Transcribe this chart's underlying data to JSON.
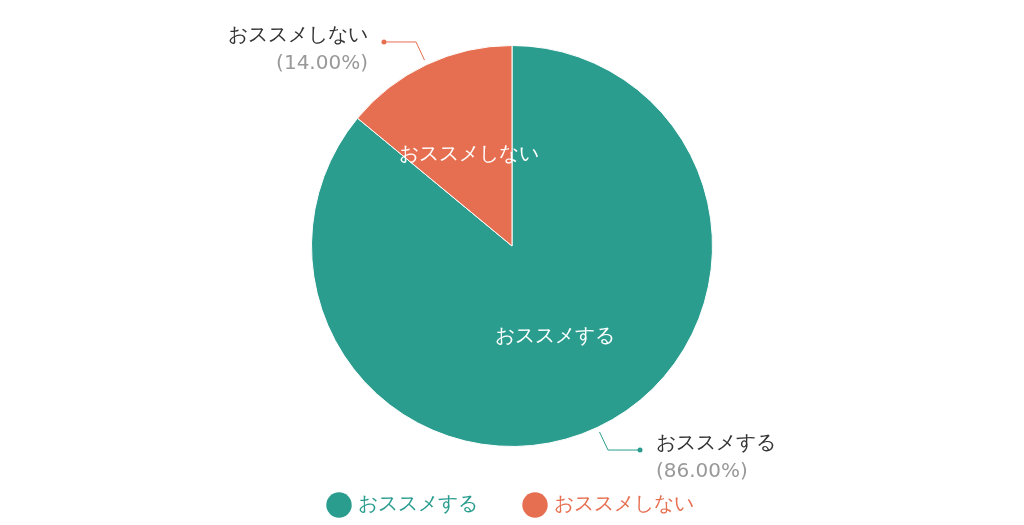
{
  "chart_data": {
    "type": "pie",
    "categories": [
      "おススメする",
      "おススメしない"
    ],
    "values": [
      86,
      14
    ],
    "colors": [
      "#2a9d8f",
      "#e76f51"
    ],
    "value_labels": [
      "(86.00%)",
      "(14.00%)"
    ],
    "legend": "bottom"
  }
}
